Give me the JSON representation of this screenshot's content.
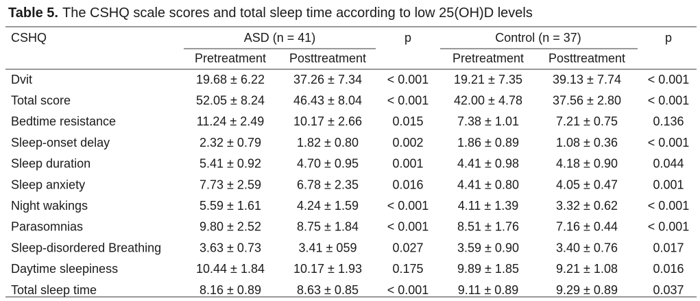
{
  "table": {
    "title_label": "Table 5.",
    "title_text": "The CSHQ scale scores and total sleep time  according to low 25(OH)D levels",
    "header": {
      "cshq": "CSHQ",
      "asd": "ASD (n = 41)",
      "p1": "p",
      "control": "Control (n = 37)",
      "p2": "p",
      "subheaders": [
        "Pretreatment",
        "Posttreatment",
        "Pretreatment",
        "Posttreatment"
      ]
    },
    "rows": [
      [
        "Dvit",
        "19.68 ± 6.22",
        "37.26 ± 7.34",
        "< 0.001",
        "19.21 ± 7.35",
        "39.13 ± 7.74",
        "< 0.001"
      ],
      [
        "Total score",
        "52.05 ± 8.24",
        "46.43 ± 8.04",
        "< 0.001",
        "42.00 ± 4.78",
        "37.56 ± 2.80",
        "< 0.001"
      ],
      [
        "Bedtime resistance",
        "11.24 ± 2.49",
        "10.17 ± 2.66",
        "0.015",
        "7.38 ± 1.01",
        "7.21 ± 0.75",
        "0.136"
      ],
      [
        "Sleep-onset delay",
        "2.32 ± 0.79",
        "1.82 ± 0.80",
        "0.002",
        "1.86 ± 0.89",
        "1.08 ± 0.36",
        "< 0.001"
      ],
      [
        "Sleep duration",
        "5.41 ± 0.92",
        "4.70 ± 0.95",
        "0.001",
        "4.41 ± 0.98",
        "4.18 ± 0.90",
        "0.044"
      ],
      [
        "Sleep anxiety",
        "7.73 ± 2.59",
        "6.78 ± 2.35",
        "0.016",
        "4.41 ± 0.80",
        "4.05 ± 0.47",
        "0.001"
      ],
      [
        "Night wakings",
        "5.59 ± 1.61",
        "4.24 ± 1.59",
        "< 0.001",
        "4.11 ± 1.39",
        "3.32 ± 0.62",
        "< 0.001"
      ],
      [
        "Parasomnias",
        "9.80 ± 2.52",
        "8.75 ± 1.84",
        "< 0.001",
        "8.51 ± 1.76",
        "7.16 ± 0.44",
        "< 0.001"
      ],
      [
        "Sleep-disordered Breathing",
        "3.63 ± 0.73",
        "3.41 ± 059",
        "0.027",
        "3.59 ± 0.90",
        "3.40 ± 0.76",
        "0.017"
      ],
      [
        "Daytime sleepiness",
        "10.44 ± 1.84",
        "10.17 ± 1.93",
        "0.175",
        "9.89 ± 1.85",
        "9.21 ± 1.08",
        "0.016"
      ],
      [
        "Total sleep time",
        "8.16 ± 0.89",
        "8.63 ± 0.85",
        "< 0.001",
        "9.11 ± 0.89",
        "9.29 ± 0.89",
        "0.037"
      ]
    ]
  }
}
